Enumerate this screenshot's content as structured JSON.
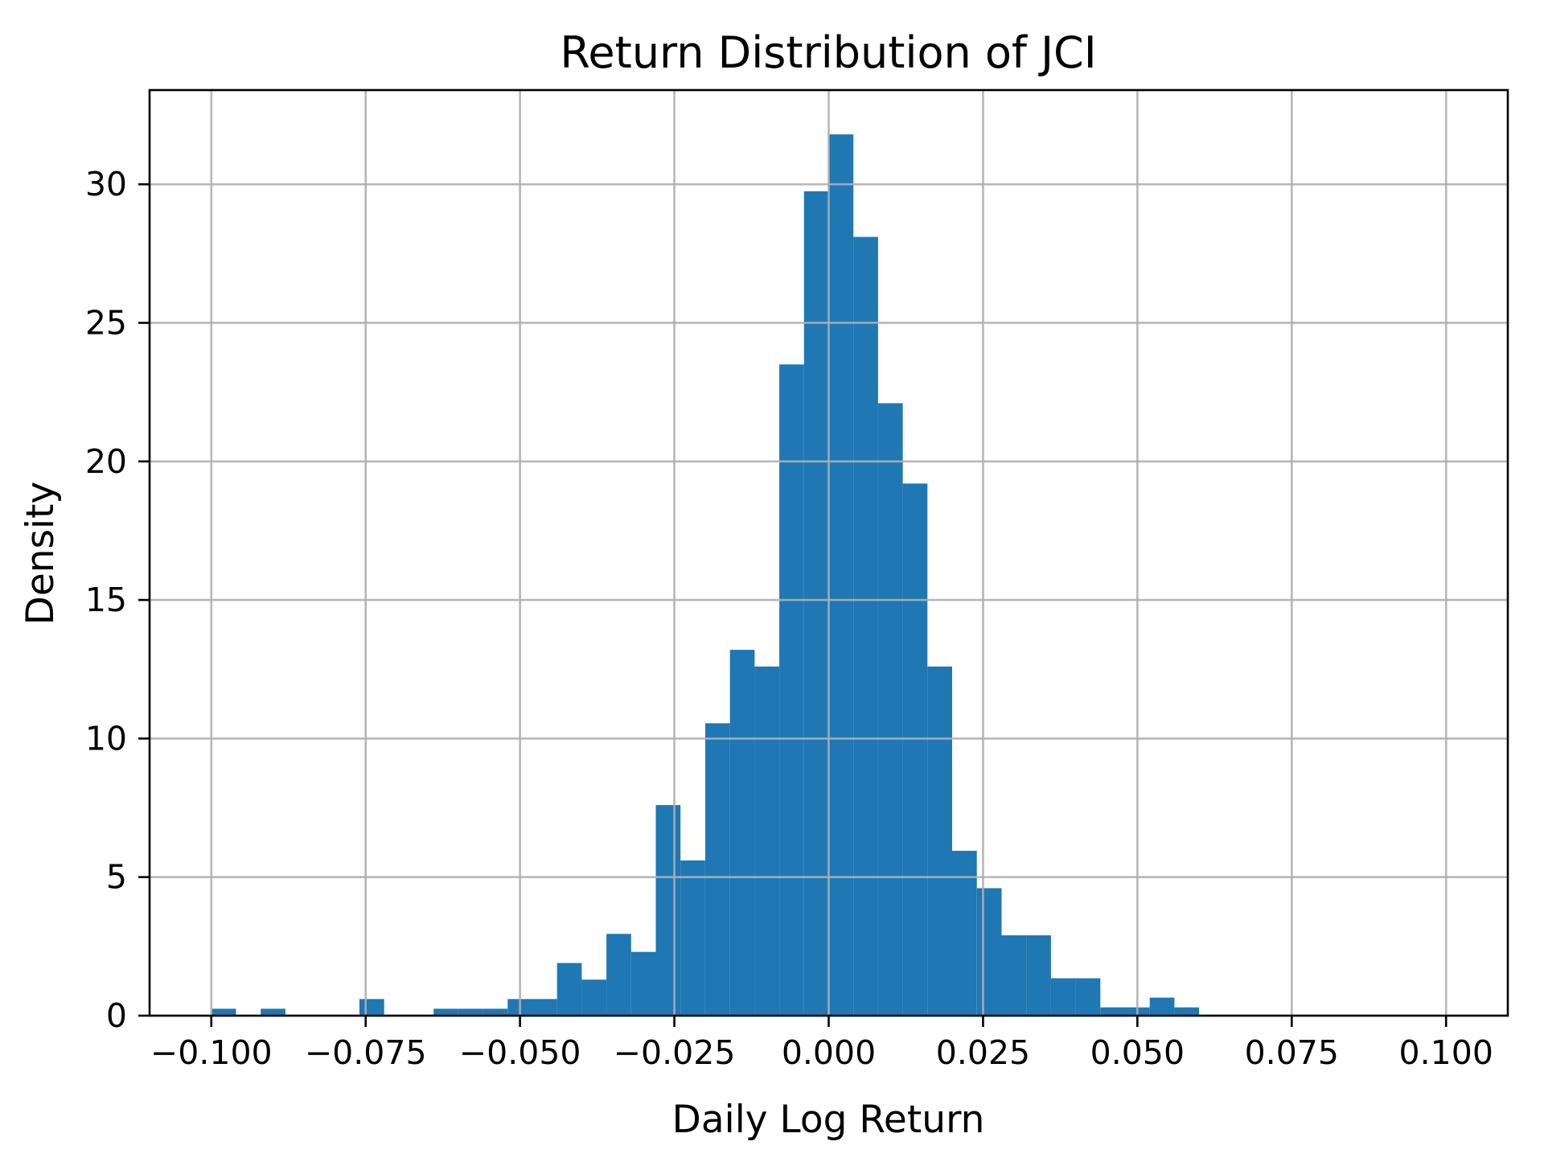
{
  "chart_data": {
    "type": "bar",
    "subtype": "histogram",
    "title": "Return Distribution of JCI",
    "xlabel": "Daily Log Return",
    "ylabel": "Density",
    "bar_color": "#1f77b4",
    "grid_color": "#b0b0b0",
    "spine_color": "#000000",
    "grid": true,
    "grid_above_bars": true,
    "legend": "none",
    "xlim": [
      -0.11,
      0.11
    ],
    "ylim": [
      0,
      33.4
    ],
    "bin_width": 0.004,
    "bars": [
      {
        "start": -0.1,
        "density": 0.25
      },
      {
        "start": -0.092,
        "density": 0.25
      },
      {
        "start": -0.076,
        "density": 0.6
      },
      {
        "start": -0.064,
        "density": 0.25
      },
      {
        "start": -0.06,
        "density": 0.25
      },
      {
        "start": -0.056,
        "density": 0.25
      },
      {
        "start": -0.052,
        "density": 0.6
      },
      {
        "start": -0.048,
        "density": 0.6
      },
      {
        "start": -0.044,
        "density": 1.9
      },
      {
        "start": -0.04,
        "density": 1.3
      },
      {
        "start": -0.036,
        "density": 2.95
      },
      {
        "start": -0.032,
        "density": 2.3
      },
      {
        "start": -0.028,
        "density": 7.6
      },
      {
        "start": -0.024,
        "density": 5.6
      },
      {
        "start": -0.02,
        "density": 10.55
      },
      {
        "start": -0.016,
        "density": 13.2
      },
      {
        "start": -0.012,
        "density": 12.6
      },
      {
        "start": -0.008,
        "density": 23.5
      },
      {
        "start": -0.004,
        "density": 29.75
      },
      {
        "start": 0.0,
        "density": 31.8
      },
      {
        "start": 0.004,
        "density": 28.1
      },
      {
        "start": 0.008,
        "density": 22.1
      },
      {
        "start": 0.012,
        "density": 19.2
      },
      {
        "start": 0.016,
        "density": 12.6
      },
      {
        "start": 0.02,
        "density": 5.95
      },
      {
        "start": 0.024,
        "density": 4.6
      },
      {
        "start": 0.028,
        "density": 2.9
      },
      {
        "start": 0.032,
        "density": 2.9
      },
      {
        "start": 0.036,
        "density": 1.35
      },
      {
        "start": 0.04,
        "density": 1.35
      },
      {
        "start": 0.044,
        "density": 0.3
      },
      {
        "start": 0.048,
        "density": 0.3
      },
      {
        "start": 0.052,
        "density": 0.65
      },
      {
        "start": 0.056,
        "density": 0.3
      }
    ],
    "x_ticks": [
      -0.1,
      -0.075,
      -0.05,
      -0.025,
      0.0,
      0.025,
      0.05,
      0.075,
      0.1
    ],
    "x_tick_labels": [
      "−0.100",
      "−0.075",
      "−0.050",
      "−0.025",
      "0.000",
      "0.025",
      "0.050",
      "0.075",
      "0.100"
    ],
    "y_ticks": [
      0,
      5,
      10,
      15,
      20,
      25,
      30
    ],
    "y_tick_labels": [
      "0",
      "5",
      "10",
      "15",
      "20",
      "25",
      "30"
    ]
  }
}
